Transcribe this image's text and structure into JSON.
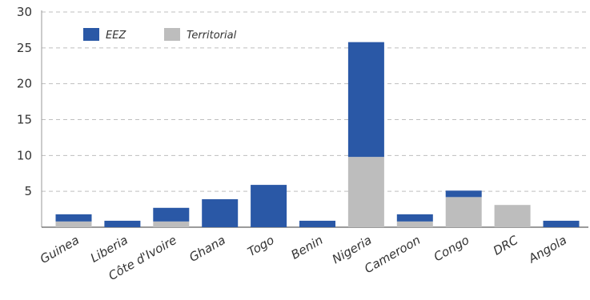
{
  "chart_data": {
    "type": "bar",
    "stacked": true,
    "title": "",
    "xlabel": "",
    "ylabel": "",
    "ylim": [
      0,
      30
    ],
    "yticks": [
      5,
      10,
      15,
      20,
      25,
      30
    ],
    "grid": "horizontal dashed",
    "legend_position": "top-left",
    "categories": [
      "Guinea",
      "Liberia",
      "Côte d'Ivoire",
      "Ghana",
      "Togo",
      "Benin",
      "Nigeria",
      "Cameroon",
      "Congo",
      "DRC",
      "Angola"
    ],
    "series": [
      {
        "name": "Territorial",
        "color": "#bdbdbd",
        "values": [
          0.8,
          0,
          0.8,
          0,
          0,
          0,
          9.8,
          0.8,
          4.2,
          3.1,
          0
        ]
      },
      {
        "name": "EEZ",
        "color": "#2a58a6",
        "values": [
          1.0,
          0.9,
          1.9,
          3.9,
          5.9,
          0.9,
          16.0,
          1.0,
          0.9,
          0,
          0.9
        ]
      }
    ],
    "legend": [
      {
        "label": "EEZ",
        "color": "#2a58a6"
      },
      {
        "label": "Territorial",
        "color": "#bdbdbd"
      }
    ]
  }
}
